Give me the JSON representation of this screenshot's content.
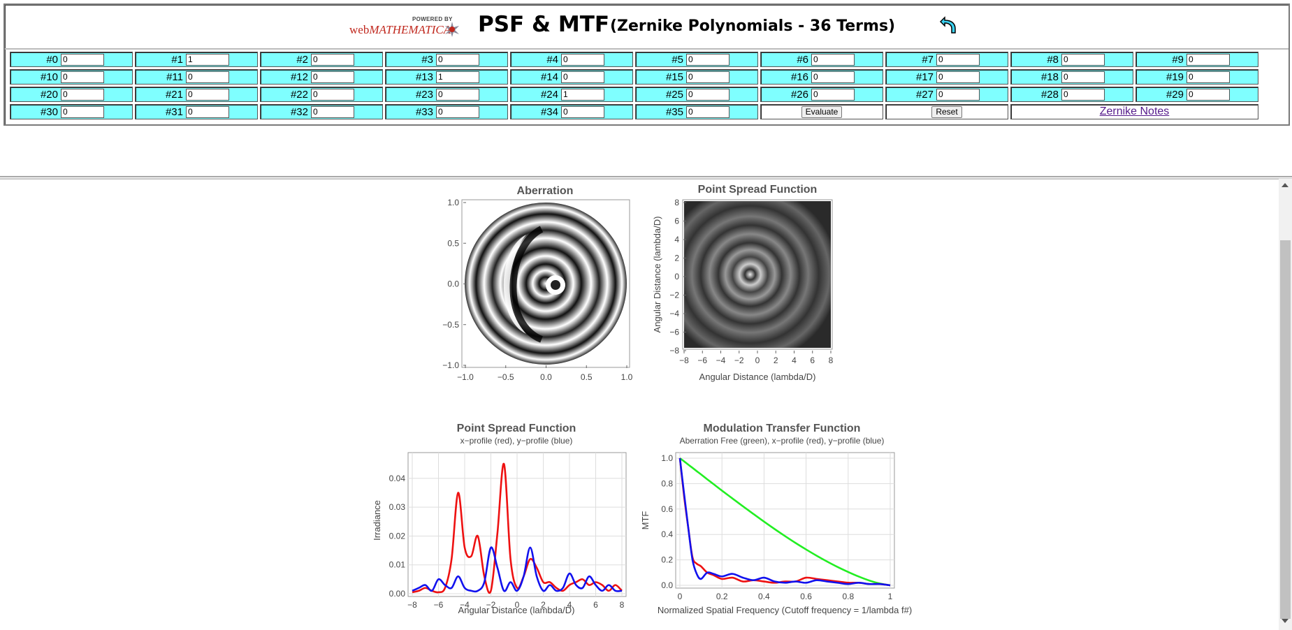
{
  "header": {
    "logo_powered": "POWERED BY",
    "logo_web": "web",
    "logo_math": "MATHEMATICA",
    "title": "PSF & MTF",
    "subtitle": "(Zernike Polynomials - 36 Terms)"
  },
  "coefficients": [
    {
      "label": "#0",
      "value": "0"
    },
    {
      "label": "#1",
      "value": "1"
    },
    {
      "label": "#2",
      "value": "0"
    },
    {
      "label": "#3",
      "value": "0"
    },
    {
      "label": "#4",
      "value": "0"
    },
    {
      "label": "#5",
      "value": "0"
    },
    {
      "label": "#6",
      "value": "0"
    },
    {
      "label": "#7",
      "value": "0"
    },
    {
      "label": "#8",
      "value": "0"
    },
    {
      "label": "#9",
      "value": "0"
    },
    {
      "label": "#10",
      "value": "0"
    },
    {
      "label": "#11",
      "value": "0"
    },
    {
      "label": "#12",
      "value": "0"
    },
    {
      "label": "#13",
      "value": "1"
    },
    {
      "label": "#14",
      "value": "0"
    },
    {
      "label": "#15",
      "value": "0"
    },
    {
      "label": "#16",
      "value": "0"
    },
    {
      "label": "#17",
      "value": "0"
    },
    {
      "label": "#18",
      "value": "0"
    },
    {
      "label": "#19",
      "value": "0"
    },
    {
      "label": "#20",
      "value": "0"
    },
    {
      "label": "#21",
      "value": "0"
    },
    {
      "label": "#22",
      "value": "0"
    },
    {
      "label": "#23",
      "value": "0"
    },
    {
      "label": "#24",
      "value": "1"
    },
    {
      "label": "#25",
      "value": "0"
    },
    {
      "label": "#26",
      "value": "0"
    },
    {
      "label": "#27",
      "value": "0"
    },
    {
      "label": "#28",
      "value": "0"
    },
    {
      "label": "#29",
      "value": "0"
    },
    {
      "label": "#30",
      "value": "0"
    },
    {
      "label": "#31",
      "value": "0"
    },
    {
      "label": "#32",
      "value": "0"
    },
    {
      "label": "#33",
      "value": "0"
    },
    {
      "label": "#34",
      "value": "0"
    },
    {
      "label": "#35",
      "value": "0"
    }
  ],
  "buttons": {
    "evaluate": "Evaluate",
    "reset": "Reset",
    "notes": "Zernike Notes"
  },
  "colors": {
    "cell_bg": "#7fffff",
    "red": "#ee1111",
    "blue": "#1111ee",
    "green": "#22ee22"
  },
  "chart_data": [
    {
      "type": "heatmap",
      "title": "Aberration",
      "xlim": [
        -1.0,
        1.0
      ],
      "ylim": [
        -1.0,
        1.0
      ],
      "xticks": [
        "−1.0",
        "−0.5",
        "0.0",
        "0.5",
        "1.0"
      ],
      "yticks": [
        "1.0",
        "0.5",
        "0.0",
        "−0.5",
        "−1.0"
      ]
    },
    {
      "type": "heatmap",
      "title": "Point Spread Function",
      "xlabel": "Angular Distance (lambda/D)",
      "ylabel": "Angular  Distance  (lambda/D)",
      "xlim": [
        -8,
        8
      ],
      "ylim": [
        -8,
        8
      ],
      "xticks": [
        "−8",
        "−6",
        "−4",
        "−2",
        "0",
        "2",
        "4",
        "6",
        "8"
      ],
      "yticks": [
        "8",
        "6",
        "4",
        "2",
        "0",
        "−2",
        "−4",
        "−6",
        "−8"
      ]
    },
    {
      "type": "line",
      "title": "Point Spread Function",
      "subtitle": "x−profile (red), y−profile (blue)",
      "xlabel": "Angular Distance (lambda/D)",
      "ylabel": "Irradiance",
      "xlim": [
        -8,
        8
      ],
      "ylim": [
        0,
        0.047
      ],
      "xticks": [
        "−8",
        "−6",
        "−4",
        "−2",
        "0",
        "2",
        "4",
        "6",
        "8"
      ],
      "yticks": [
        "0.00",
        "0.01",
        "0.02",
        "0.03",
        "0.04"
      ],
      "x": [
        -8,
        -7.5,
        -7,
        -6.5,
        -6,
        -5.5,
        -5,
        -4.5,
        -4,
        -3.5,
        -3,
        -2.5,
        -2,
        -1.5,
        -1,
        -0.5,
        0,
        0.5,
        1,
        1.5,
        2,
        2.5,
        3,
        3.5,
        4,
        4.5,
        5,
        5.5,
        6,
        6.5,
        7,
        7.5,
        8
      ],
      "series": [
        {
          "name": "x-profile (red)",
          "values": [
            0.0005,
            0.001,
            0.002,
            0.001,
            0.0005,
            0.002,
            0.012,
            0.035,
            0.016,
            0.013,
            0.02,
            0.006,
            0.001,
            0.021,
            0.045,
            0.012,
            0.002,
            0.006,
            0.012,
            0.009,
            0.004,
            0.004,
            0.002,
            0.001,
            0.003,
            0.004,
            0.005,
            0.003,
            0.004,
            0.003,
            0.001,
            0.003,
            0.001
          ]
        },
        {
          "name": "y-profile (blue)",
          "values": [
            0.001,
            0.002,
            0.003,
            0.001,
            0.005,
            0.003,
            0.002,
            0.006,
            0.002,
            0.001,
            0.001,
            0.004,
            0.016,
            0.009,
            0.001,
            0.004,
            0.001,
            0.006,
            0.016,
            0.006,
            0.001,
            0.003,
            0.001,
            0.002,
            0.007,
            0.003,
            0.002,
            0.006,
            0.003,
            0.001,
            0.003,
            0.001,
            0.001
          ]
        }
      ]
    },
    {
      "type": "line",
      "title": "Modulation Transfer Function",
      "subtitle": "Aberration Free (green), x−profile (red), y−profile (blue)",
      "xlabel": "Normalized Spatial Frequency (Cutoff frequency = 1/lambda f#)",
      "ylabel": "MTF",
      "xlim": [
        0,
        1
      ],
      "ylim": [
        0,
        1.0
      ],
      "xticks": [
        "0",
        "0.2",
        "0.4",
        "0.6",
        "0.8",
        "1"
      ],
      "yticks": [
        "0.0",
        "0.2",
        "0.4",
        "0.6",
        "0.8",
        "1.0"
      ],
      "x": [
        0,
        0.02,
        0.04,
        0.06,
        0.08,
        0.1,
        0.13,
        0.16,
        0.2,
        0.25,
        0.3,
        0.35,
        0.4,
        0.45,
        0.5,
        0.55,
        0.6,
        0.65,
        0.7,
        0.75,
        0.8,
        0.85,
        0.9,
        0.95,
        1.0
      ],
      "series": [
        {
          "name": "Aberration Free (green)",
          "values": [
            1.0,
            0.975,
            0.949,
            0.924,
            0.898,
            0.873,
            0.834,
            0.796,
            0.745,
            0.683,
            0.621,
            0.561,
            0.501,
            0.443,
            0.387,
            0.333,
            0.282,
            0.233,
            0.187,
            0.144,
            0.105,
            0.069,
            0.038,
            0.014,
            0.0
          ]
        },
        {
          "name": "x-profile (red)",
          "values": [
            1.0,
            0.7,
            0.45,
            0.22,
            0.17,
            0.15,
            0.1,
            0.08,
            0.05,
            0.06,
            0.03,
            0.04,
            0.03,
            0.02,
            0.03,
            0.03,
            0.06,
            0.05,
            0.04,
            0.03,
            0.02,
            0.02,
            0.01,
            0.01,
            0.0
          ]
        },
        {
          "name": "y-profile (blue)",
          "values": [
            1.0,
            0.72,
            0.45,
            0.2,
            0.09,
            0.05,
            0.1,
            0.09,
            0.07,
            0.09,
            0.06,
            0.04,
            0.06,
            0.03,
            0.02,
            0.03,
            0.02,
            0.04,
            0.03,
            0.02,
            0.01,
            0.02,
            0.01,
            0.01,
            0.0
          ]
        }
      ]
    }
  ]
}
